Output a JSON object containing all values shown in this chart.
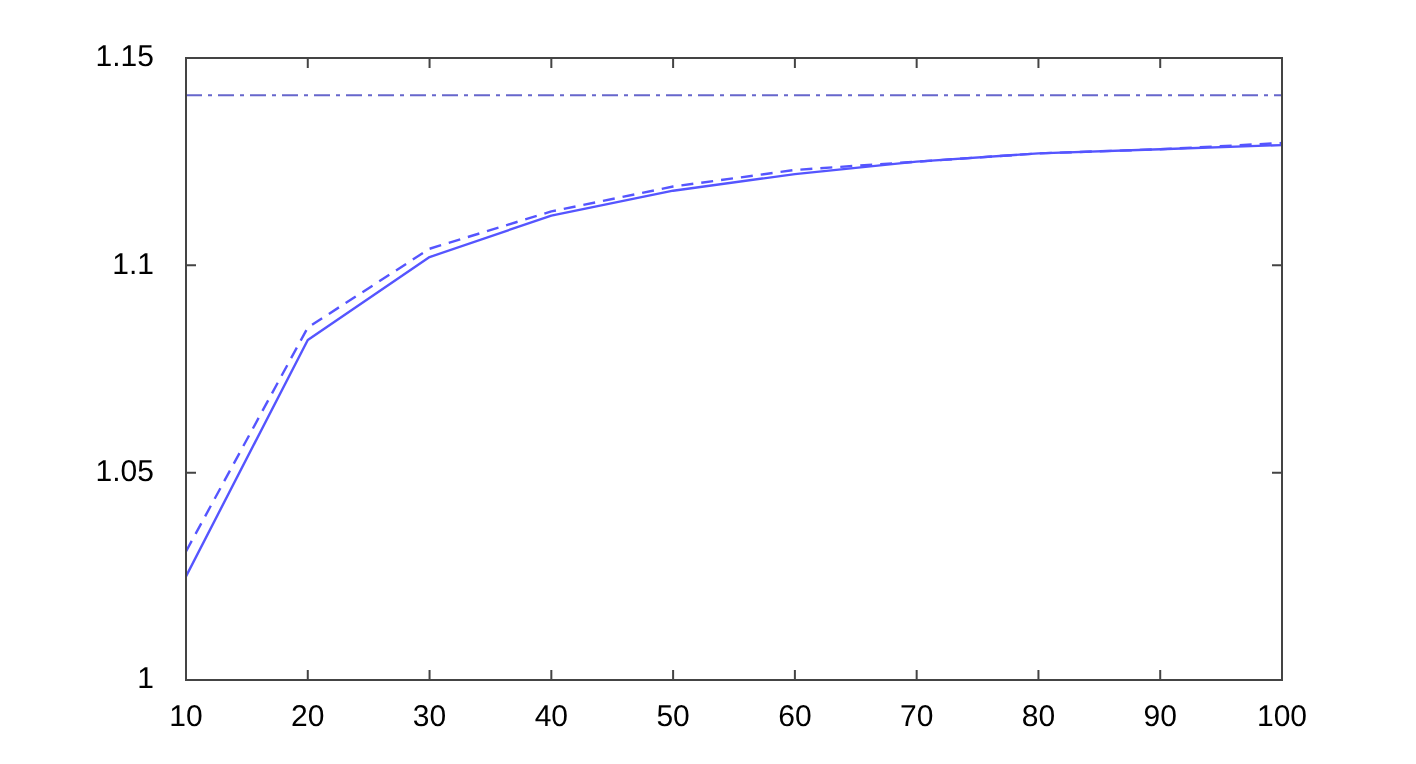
{
  "chart_data": {
    "type": "line",
    "x": [
      10,
      20,
      30,
      40,
      50,
      60,
      70,
      80,
      90,
      100
    ],
    "series": [
      {
        "color": "#5555ff",
        "line_style": "solid",
        "values": [
          1.025,
          1.082,
          1.102,
          1.112,
          1.118,
          1.122,
          1.125,
          1.127,
          1.128,
          1.129
        ]
      },
      {
        "color": "#5555ff",
        "line_style": "dashed",
        "values": [
          1.031,
          1.085,
          1.104,
          1.113,
          1.119,
          1.123,
          1.125,
          1.127,
          1.128,
          1.1295
        ]
      }
    ],
    "xlim": [
      10,
      100
    ],
    "xticks": [
      10,
      20,
      30,
      40,
      50,
      60,
      70,
      80,
      90,
      100
    ],
    "ylim": [
      1,
      1.15
    ],
    "yticks": [
      1,
      1.05,
      1.1,
      1.15
    ],
    "ref_lines": [
      {
        "axis": "y",
        "value": 1.141,
        "color": "#6666cc",
        "line_style": "dashed"
      }
    ],
    "grid": false,
    "legend": false,
    "marker": "none"
  }
}
